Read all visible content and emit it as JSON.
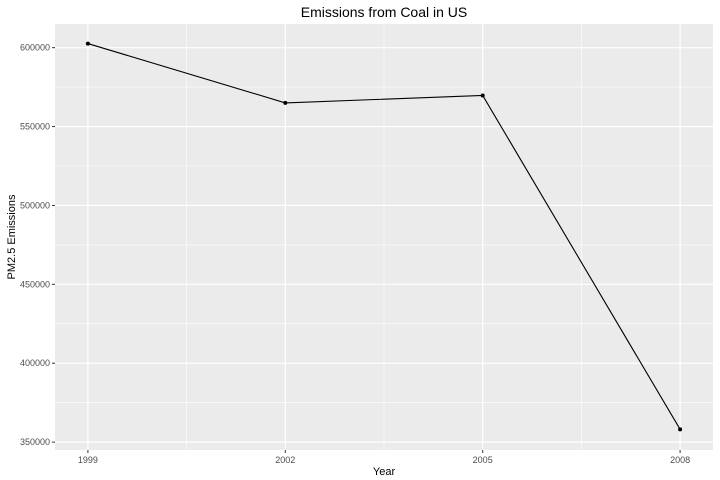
{
  "chart_data": {
    "type": "line",
    "title": "Emissions from Coal in US",
    "xlabel": "Year",
    "ylabel": "PM2.5 Emissions",
    "x": [
      1999,
      2002,
      2005,
      2008
    ],
    "y": [
      602600,
      565000,
      569700,
      358100
    ],
    "xticks": [
      "1999",
      "2002",
      "2005",
      "2008"
    ],
    "yticks": [
      350000,
      400000,
      450000,
      500000,
      550000,
      600000
    ],
    "ytick_labels": [
      "350000",
      "400000",
      "450000",
      "500000",
      "550000",
      "600000"
    ],
    "xlim": [
      1998.5,
      2008.5
    ],
    "ylim": [
      345000,
      615000
    ],
    "grid": true,
    "colors": {
      "panel": "#ebebeb",
      "grid": "#ffffff",
      "line": "#000000",
      "tick": "#4d4d4d"
    }
  }
}
